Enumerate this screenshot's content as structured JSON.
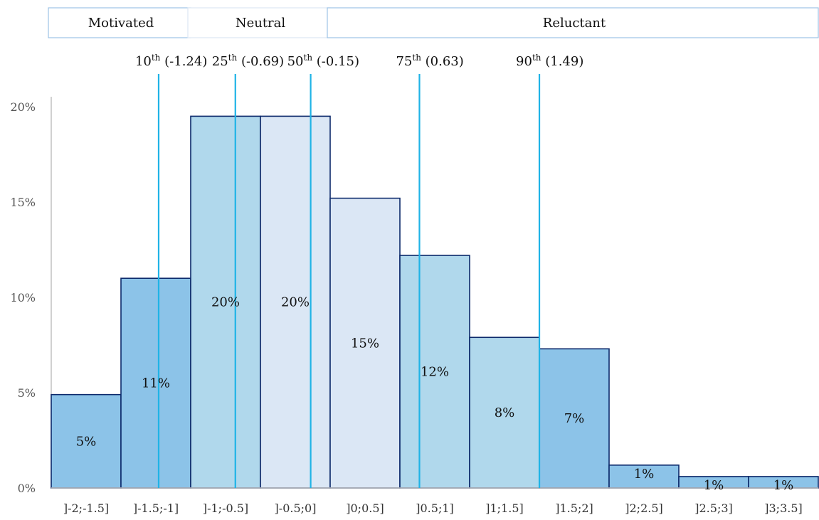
{
  "chart_data": {
    "type": "bar",
    "categories": [
      "]-2;-1.5]",
      "]-1.5;-1]",
      "]-1;-0.5]",
      "]-0.5;0]",
      "]0;0.5]",
      "]0.5;1]",
      "]1;1.5]",
      "]1.5;2]",
      "]2;2.5]",
      "]2.5;3]",
      "]3;3.5]"
    ],
    "values": [
      4.9,
      11.0,
      19.5,
      19.5,
      15.2,
      12.2,
      7.9,
      7.3,
      1.2,
      0.6,
      0.6
    ],
    "data_labels": [
      "5%",
      "11%",
      "20%",
      "20%",
      "15%",
      "12%",
      "8%",
      "7%",
      "1%",
      "1%",
      "1%"
    ],
    "bar_colors": [
      "#8cc3e8",
      "#8cc3e8",
      "#b0d8ec",
      "#dbe7f5",
      "#dbe7f5",
      "#b0d8ec",
      "#b0d8ec",
      "#8cc3e8",
      "#8cc3e8",
      "#8cc3e8",
      "#8cc3e8"
    ],
    "x_domain": [
      -2,
      3.5
    ],
    "ylim": [
      0,
      20
    ],
    "yticks": [
      "0%",
      "5%",
      "10%",
      "15%",
      "20%"
    ],
    "ytick_values": [
      0,
      5,
      10,
      15,
      20
    ],
    "percentiles": [
      {
        "ordinal": "10",
        "suffix": "th",
        "value_text": "(-1.24)",
        "value": -1.24
      },
      {
        "ordinal": "25",
        "suffix": "th",
        "value_text": "(-0.69)",
        "value": -0.69
      },
      {
        "ordinal": "50",
        "suffix": "th",
        "value_text": "(-0.15)",
        "value": -0.15
      },
      {
        "ordinal": "75",
        "suffix": "th",
        "value_text": "(0.63)",
        "value": 0.63
      },
      {
        "ordinal": "90",
        "suffix": "th",
        "value_text": "(1.49)",
        "value": 1.49
      }
    ],
    "percentile_color": "#1fb3e6",
    "groups": [
      {
        "label": "Motivated",
        "from": -2,
        "to": -1
      },
      {
        "label": "Neutral",
        "from": -1,
        "to": 0
      },
      {
        "label": "Reluctant",
        "from": 0,
        "to": 3.5
      }
    ]
  }
}
